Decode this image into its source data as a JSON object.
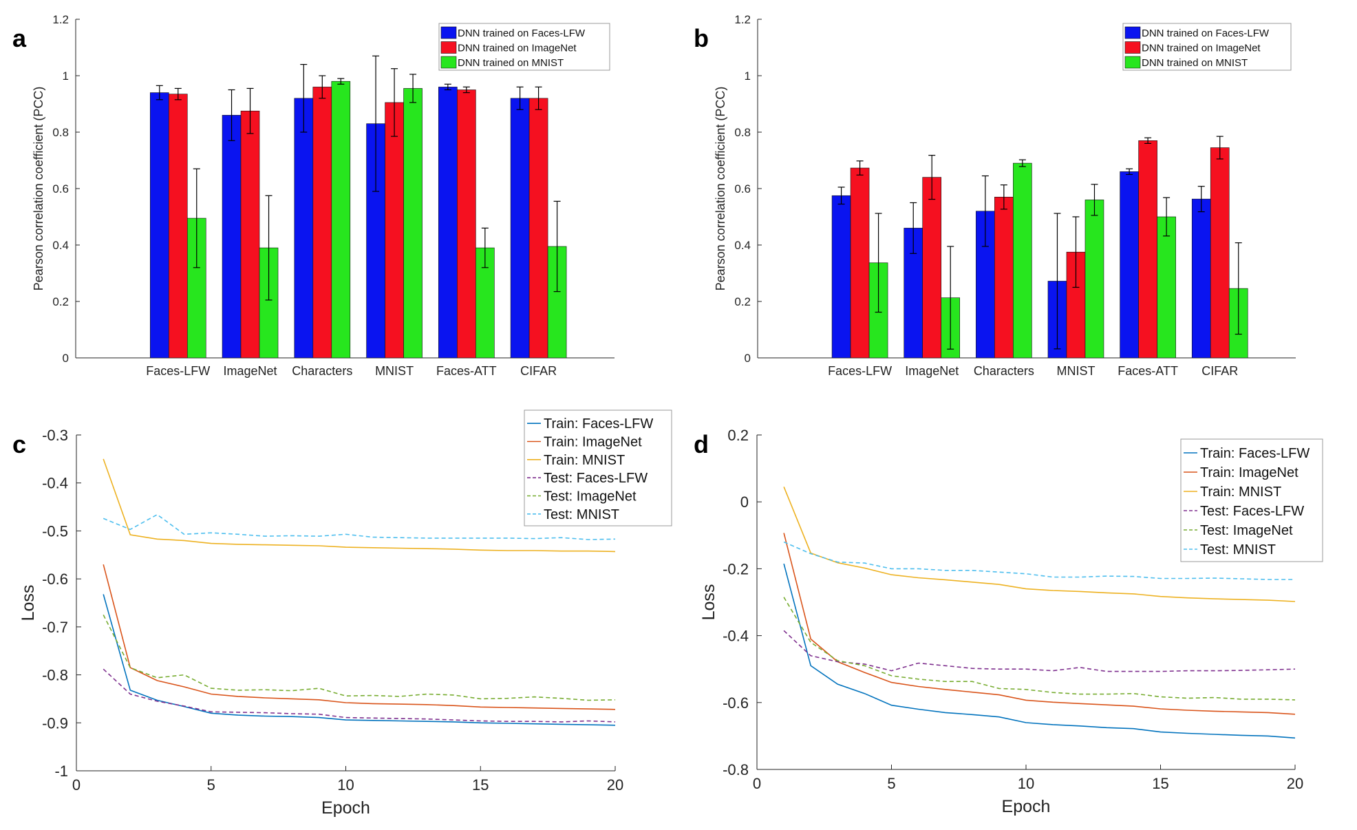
{
  "colors": {
    "faces_lfw_bar": "#0a14f0",
    "imagenet_bar": "#f51020",
    "mnist_bar": "#27e61e",
    "line_blue": "#0072bd",
    "line_orange": "#d95319",
    "line_yellow": "#edb120",
    "line_purple": "#7e2f8e",
    "line_green": "#77ac30",
    "line_cyan": "#4dbeee"
  },
  "chart_data": [
    {
      "panel": "a",
      "type": "bar",
      "ylabel": "Pearson correlation coefficient (PCC)",
      "ylim": [
        0,
        1.2
      ],
      "yticks": [
        "0",
        "0.2",
        "0.4",
        "0.6",
        "0.8",
        "1",
        "1.2"
      ],
      "categories": [
        "Faces-LFW",
        "ImageNet",
        "Characters",
        "MNIST",
        "Faces-ATT",
        "CIFAR"
      ],
      "legend_position": "top-right",
      "series": [
        {
          "name": "DNN trained on Faces-LFW",
          "values": [
            0.94,
            0.86,
            0.92,
            0.83,
            0.96,
            0.92
          ],
          "errors": [
            0.025,
            0.09,
            0.12,
            0.24,
            0.01,
            0.04
          ]
        },
        {
          "name": "DNN trained on ImageNet",
          "values": [
            0.935,
            0.875,
            0.96,
            0.905,
            0.95,
            0.92
          ],
          "errors": [
            0.02,
            0.08,
            0.04,
            0.12,
            0.01,
            0.04
          ]
        },
        {
          "name": "DNN trained on MNIST",
          "values": [
            0.495,
            0.39,
            0.98,
            0.955,
            0.39,
            0.395
          ],
          "errors": [
            0.175,
            0.185,
            0.01,
            0.05,
            0.07,
            0.16
          ]
        }
      ]
    },
    {
      "panel": "b",
      "type": "bar",
      "ylabel": "Pearson correlation coefficient (PCC)",
      "ylim": [
        0,
        1.2
      ],
      "yticks": [
        "0",
        "0.2",
        "0.4",
        "0.6",
        "0.8",
        "1",
        "1.2"
      ],
      "categories": [
        "Faces-LFW",
        "ImageNet",
        "Characters",
        "MNIST",
        "Faces-ATT",
        "CIFAR"
      ],
      "legend_position": "top-right",
      "series": [
        {
          "name": "DNN trained on Faces-LFW",
          "values": [
            0.575,
            0.46,
            0.52,
            0.272,
            0.66,
            0.563
          ],
          "errors": [
            0.03,
            0.09,
            0.125,
            0.24,
            0.01,
            0.045
          ]
        },
        {
          "name": "DNN trained on ImageNet",
          "values": [
            0.673,
            0.64,
            0.57,
            0.375,
            0.77,
            0.745
          ],
          "errors": [
            0.025,
            0.078,
            0.043,
            0.125,
            0.01,
            0.04
          ]
        },
        {
          "name": "DNN trained on MNIST",
          "values": [
            0.337,
            0.213,
            0.69,
            0.56,
            0.5,
            0.246
          ],
          "errors": [
            0.175,
            0.182,
            0.012,
            0.055,
            0.068,
            0.162
          ]
        }
      ]
    },
    {
      "panel": "c",
      "type": "line",
      "xlabel": "Epoch",
      "ylabel": "Loss",
      "xlim": [
        0,
        20
      ],
      "ylim": [
        -1,
        -0.3
      ],
      "xticks": [
        "0",
        "5",
        "10",
        "15",
        "20"
      ],
      "yticks": [
        "-1",
        "-0.9",
        "-0.8",
        "-0.7",
        "-0.6",
        "-0.5",
        "-0.4",
        "-0.3"
      ],
      "legend_position": "top-right",
      "x": [
        1,
        2,
        3,
        4,
        5,
        6,
        7,
        8,
        9,
        10,
        11,
        12,
        13,
        14,
        15,
        16,
        17,
        18,
        19,
        20
      ],
      "series": [
        {
          "name": "Train: Faces-LFW",
          "style": "solid",
          "values": [
            -0.632,
            -0.832,
            -0.853,
            -0.866,
            -0.88,
            -0.884,
            -0.886,
            -0.887,
            -0.889,
            -0.894,
            -0.895,
            -0.896,
            -0.897,
            -0.898,
            -0.9,
            -0.901,
            -0.902,
            -0.903,
            -0.904,
            -0.905
          ]
        },
        {
          "name": "Train: ImageNet",
          "style": "solid",
          "values": [
            -0.57,
            -0.785,
            -0.812,
            -0.825,
            -0.84,
            -0.845,
            -0.848,
            -0.85,
            -0.852,
            -0.858,
            -0.86,
            -0.861,
            -0.862,
            -0.864,
            -0.867,
            -0.868,
            -0.869,
            -0.87,
            -0.871,
            -0.872
          ]
        },
        {
          "name": "Train: MNIST",
          "style": "solid",
          "values": [
            -0.35,
            -0.508,
            -0.517,
            -0.52,
            -0.526,
            -0.528,
            -0.529,
            -0.53,
            -0.531,
            -0.534,
            -0.535,
            -0.536,
            -0.537,
            -0.538,
            -0.54,
            -0.541,
            -0.541,
            -0.542,
            -0.542,
            -0.543
          ]
        },
        {
          "name": "Test: Faces-LFW",
          "style": "dashed",
          "values": [
            -0.788,
            -0.84,
            -0.855,
            -0.865,
            -0.877,
            -0.878,
            -0.879,
            -0.881,
            -0.882,
            -0.889,
            -0.89,
            -0.891,
            -0.892,
            -0.894,
            -0.896,
            -0.897,
            -0.897,
            -0.898,
            -0.896,
            -0.898
          ]
        },
        {
          "name": "Test: ImageNet",
          "style": "dashed",
          "values": [
            -0.675,
            -0.785,
            -0.806,
            -0.8,
            -0.828,
            -0.832,
            -0.831,
            -0.833,
            -0.828,
            -0.844,
            -0.843,
            -0.845,
            -0.84,
            -0.842,
            -0.85,
            -0.849,
            -0.846,
            -0.849,
            -0.853,
            -0.852
          ]
        },
        {
          "name": "Test: MNIST",
          "style": "dashed",
          "values": [
            -0.474,
            -0.497,
            -0.466,
            -0.507,
            -0.504,
            -0.507,
            -0.511,
            -0.51,
            -0.511,
            -0.507,
            -0.513,
            -0.514,
            -0.515,
            -0.515,
            -0.515,
            -0.515,
            -0.516,
            -0.514,
            -0.518,
            -0.517
          ]
        }
      ]
    },
    {
      "panel": "d",
      "type": "line",
      "xlabel": "Epoch",
      "ylabel": "Loss",
      "xlim": [
        0,
        20
      ],
      "ylim": [
        -0.8,
        0.2
      ],
      "xticks": [
        "0",
        "5",
        "10",
        "15",
        "20"
      ],
      "yticks": [
        "-0.8",
        "-0.6",
        "-0.4",
        "-0.2",
        "0",
        "0.2"
      ],
      "legend_position": "top-right",
      "x": [
        1,
        2,
        3,
        4,
        5,
        6,
        7,
        8,
        9,
        10,
        11,
        12,
        13,
        14,
        15,
        16,
        17,
        18,
        19,
        20
      ],
      "series": [
        {
          "name": "Train: Faces-LFW",
          "style": "solid",
          "values": [
            -0.185,
            -0.49,
            -0.545,
            -0.573,
            -0.608,
            -0.62,
            -0.63,
            -0.636,
            -0.643,
            -0.66,
            -0.666,
            -0.67,
            -0.675,
            -0.678,
            -0.688,
            -0.692,
            -0.695,
            -0.698,
            -0.7,
            -0.706
          ]
        },
        {
          "name": "Train: ImageNet",
          "style": "solid",
          "values": [
            -0.093,
            -0.41,
            -0.478,
            -0.51,
            -0.54,
            -0.552,
            -0.561,
            -0.569,
            -0.577,
            -0.593,
            -0.599,
            -0.603,
            -0.607,
            -0.611,
            -0.619,
            -0.623,
            -0.626,
            -0.628,
            -0.63,
            -0.635
          ]
        },
        {
          "name": "Train: MNIST",
          "style": "solid",
          "values": [
            0.045,
            -0.153,
            -0.182,
            -0.198,
            -0.218,
            -0.227,
            -0.233,
            -0.24,
            -0.247,
            -0.26,
            -0.265,
            -0.268,
            -0.272,
            -0.275,
            -0.283,
            -0.287,
            -0.29,
            -0.292,
            -0.294,
            -0.298
          ]
        },
        {
          "name": "Test: Faces-LFW",
          "style": "dashed",
          "values": [
            -0.385,
            -0.46,
            -0.478,
            -0.485,
            -0.505,
            -0.482,
            -0.49,
            -0.498,
            -0.5,
            -0.5,
            -0.505,
            -0.495,
            -0.507,
            -0.507,
            -0.507,
            -0.505,
            -0.505,
            -0.504,
            -0.502,
            -0.5
          ]
        },
        {
          "name": "Test: ImageNet",
          "style": "dashed",
          "values": [
            -0.285,
            -0.42,
            -0.475,
            -0.49,
            -0.52,
            -0.53,
            -0.537,
            -0.537,
            -0.558,
            -0.561,
            -0.57,
            -0.575,
            -0.575,
            -0.573,
            -0.583,
            -0.587,
            -0.585,
            -0.59,
            -0.59,
            -0.592
          ]
        },
        {
          "name": "Test: MNIST",
          "style": "dashed",
          "values": [
            -0.12,
            -0.155,
            -0.18,
            -0.183,
            -0.2,
            -0.2,
            -0.205,
            -0.205,
            -0.21,
            -0.215,
            -0.225,
            -0.225,
            -0.222,
            -0.223,
            -0.229,
            -0.229,
            -0.228,
            -0.23,
            -0.232,
            -0.232
          ]
        }
      ]
    }
  ]
}
